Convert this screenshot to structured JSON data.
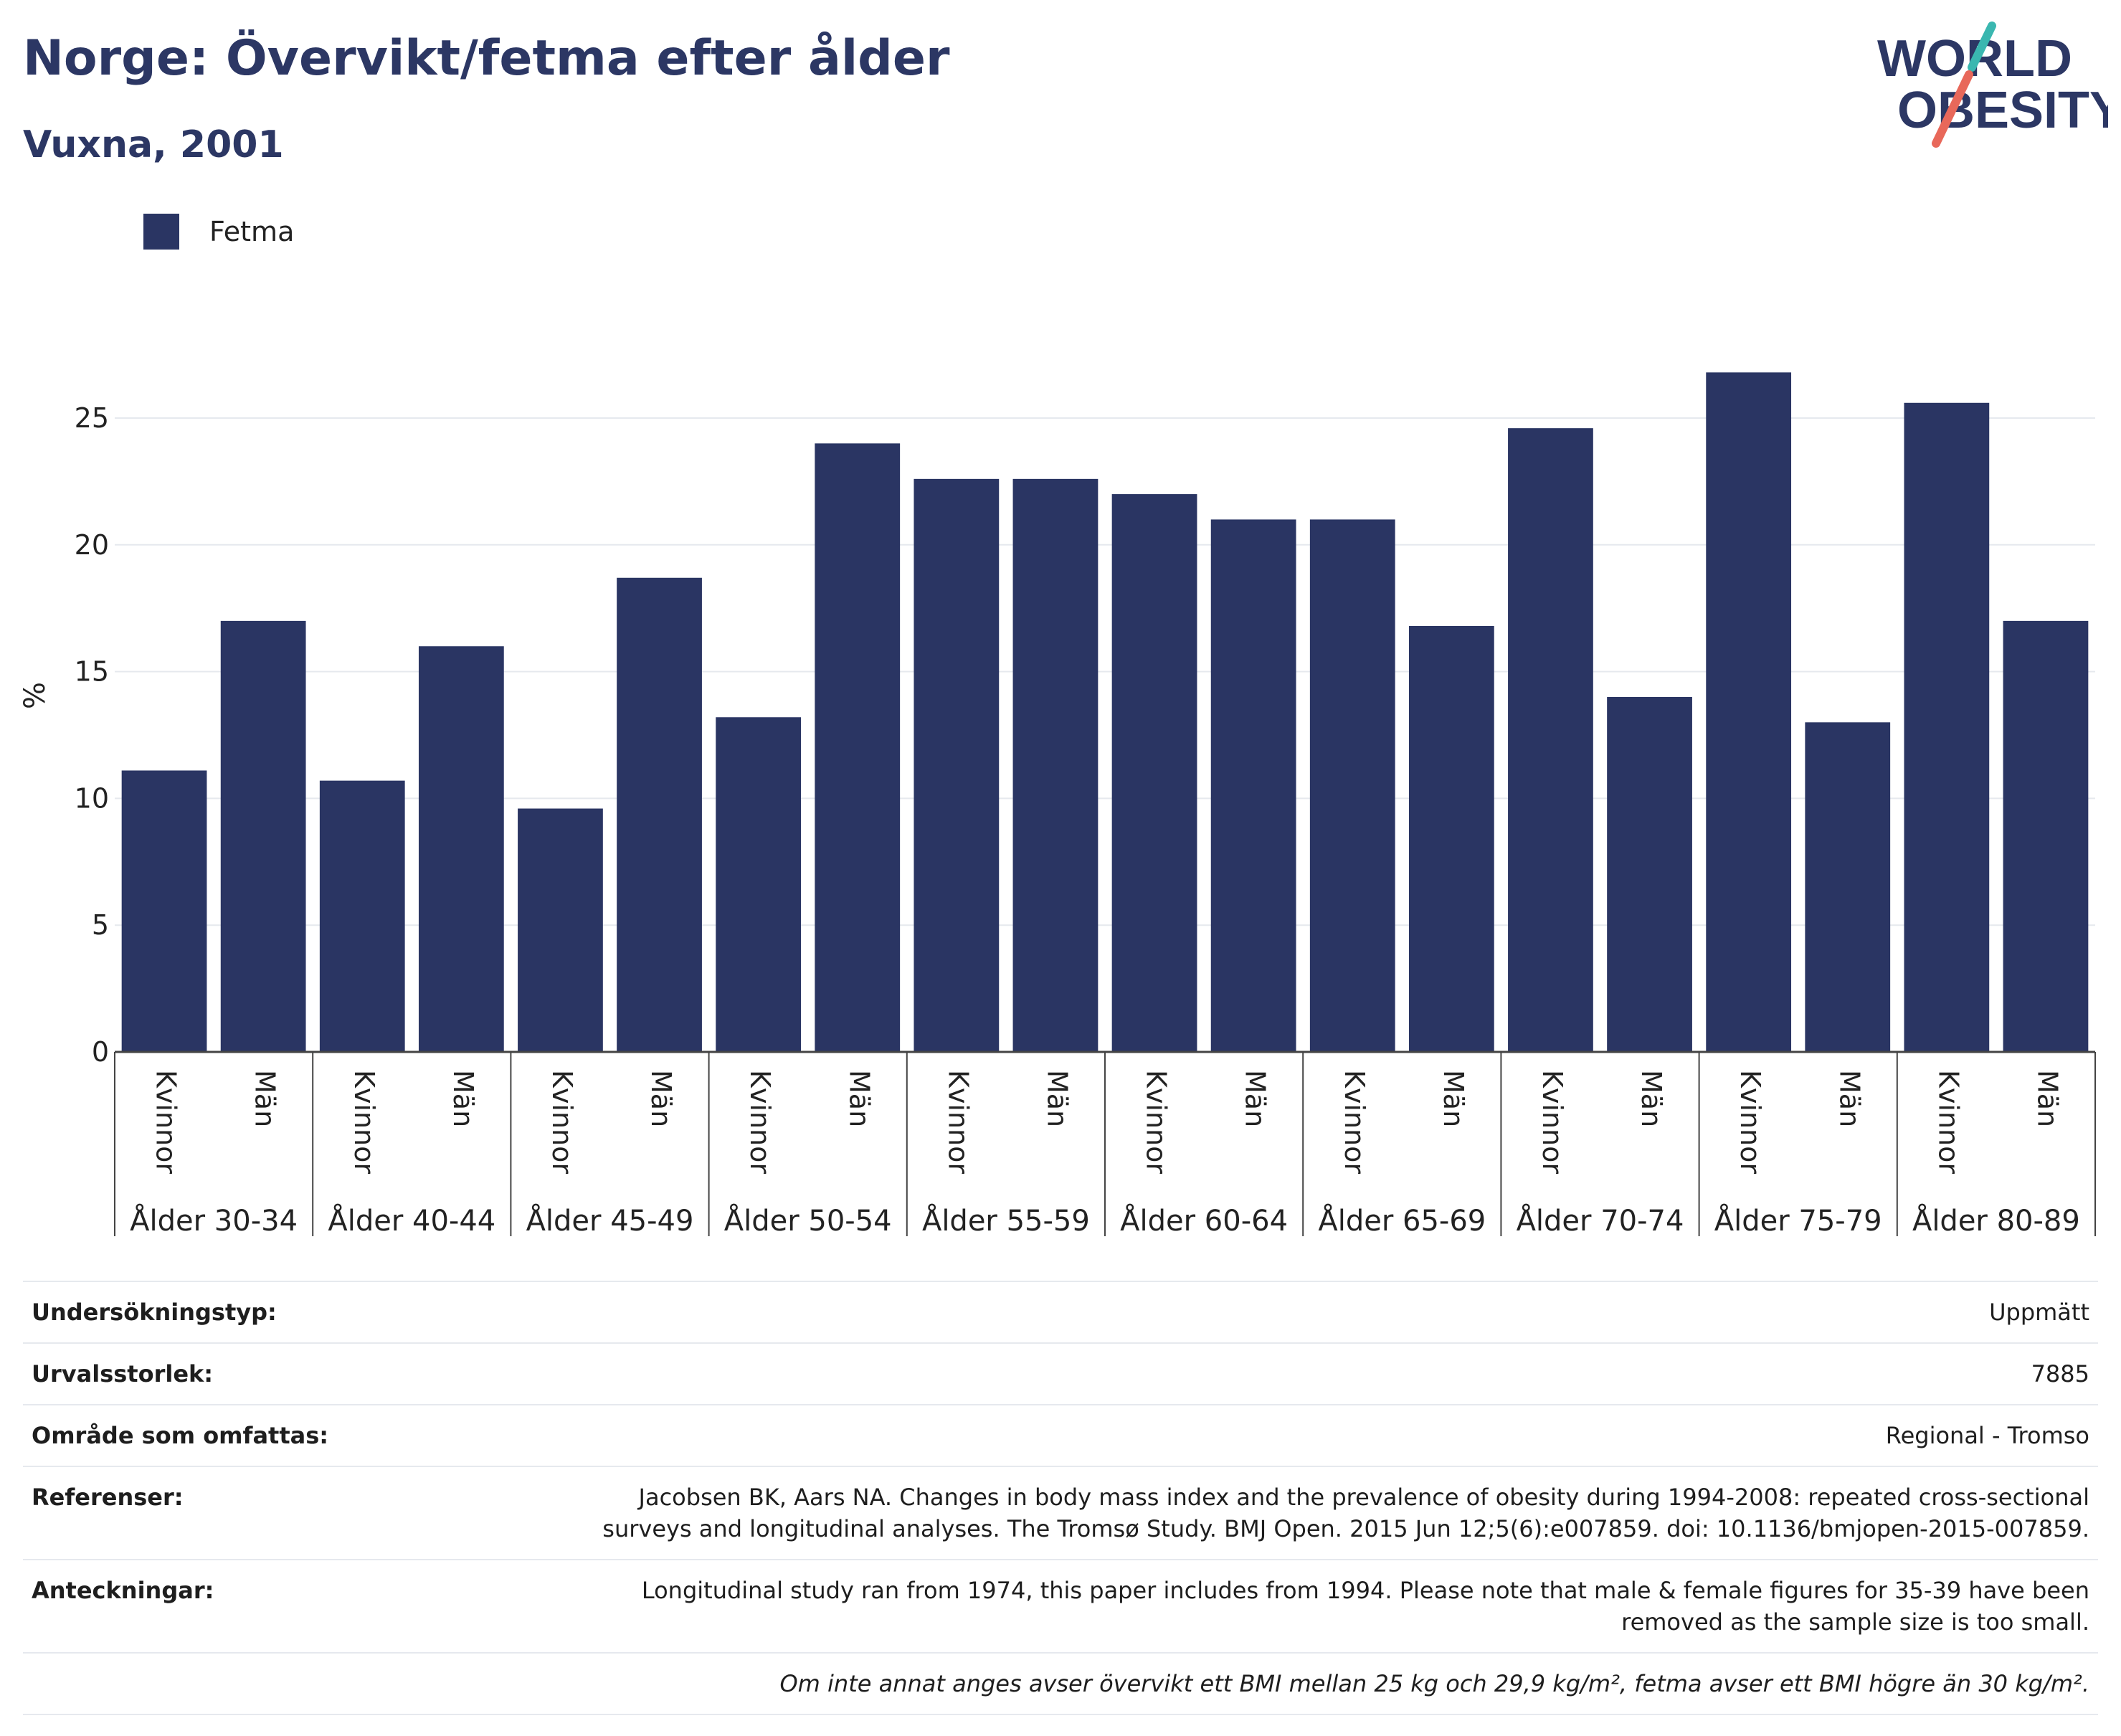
{
  "header": {
    "title": "Norge: Övervikt/fetma efter ålder",
    "subtitle": "Vuxna, 2001"
  },
  "logo": {
    "line1": "WORLD",
    "line2": "OBESITY",
    "colors": {
      "text": "#2c3764",
      "slash_teal": "#3ab7b0",
      "slash_coral": "#e8685a"
    }
  },
  "legend": {
    "items": [
      {
        "label": "Fetma",
        "color": "#2a3563"
      }
    ]
  },
  "chart_data": {
    "type": "bar",
    "title": "Norge: Övervikt/fetma efter ålder",
    "subtitle": "Vuxna, 2001",
    "ylabel": "%",
    "xlabel": "",
    "ylim": [
      0,
      28
    ],
    "yticks": [
      0,
      5,
      10,
      15,
      20,
      25
    ],
    "grid": true,
    "legend_position": "top-left",
    "groups": [
      "Ålder 30-34",
      "Ålder 40-44",
      "Ålder 45-49",
      "Ålder 50-54",
      "Ålder 55-59",
      "Ålder 60-64",
      "Ålder 65-69",
      "Ålder 70-74",
      "Ålder 75-79",
      "Ålder 80-89"
    ],
    "subcategories": [
      "Kvinnor",
      "Män"
    ],
    "series": [
      {
        "name": "Fetma",
        "color": "#2a3563",
        "values": [
          11.1,
          17.0,
          10.7,
          16.0,
          9.6,
          18.7,
          13.2,
          24.0,
          22.6,
          22.6,
          22.0,
          21.0,
          21.0,
          16.8,
          24.6,
          14.0,
          26.8,
          13.0,
          25.6,
          17.0
        ]
      }
    ]
  },
  "meta": {
    "rows": [
      {
        "key": "Undersökningstyp:",
        "value": "Uppmätt"
      },
      {
        "key": "Urvalsstorlek:",
        "value": "7885"
      },
      {
        "key": "Område som omfattas:",
        "value": "Regional - Tromso"
      },
      {
        "key": "Referenser:",
        "value": "Jacobsen BK, Aars NA. Changes in body mass index and the prevalence of obesity during 1994-2008: repeated cross-sectional surveys and longitudinal analyses. The Tromsø Study. BMJ Open. 2015 Jun 12;5(6):e007859. doi: 10.1136/bmjopen-2015-007859."
      },
      {
        "key": "Anteckningar:",
        "value": "Longitudinal study ran from 1974, this paper includes from 1994. Please note that male & female figures for 35-39 have been removed as the sample size is too small."
      }
    ],
    "note": "Om inte annat anges avser övervikt ett BMI mellan 25 kg och 29,9 kg/m², fetma avser ett BMI högre än 30 kg/m²."
  }
}
